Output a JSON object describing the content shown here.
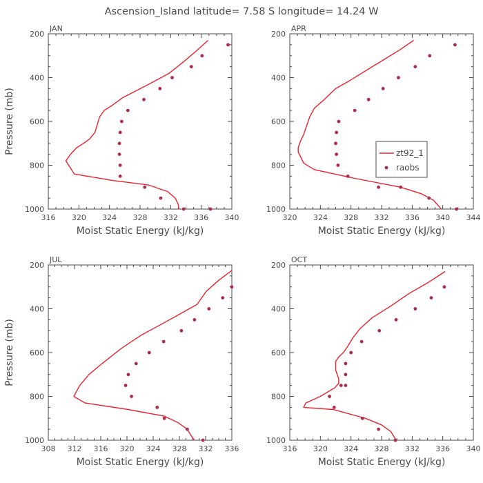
{
  "title": "Ascension_Island   latitude=  7.58 S longitude=  14.24 W",
  "colors": {
    "model": "#e8212d",
    "obs": "#b0284a",
    "axis": "#4a4a4a"
  },
  "legend": {
    "model": "zt92_1",
    "obs": "raobs"
  },
  "chart_data": [
    {
      "type": "line",
      "label": "JAN",
      "xlabel": "Moist Static Energy (kJ/kg)",
      "ylabel": "Pressure (mb)",
      "xlim": [
        316,
        340
      ],
      "xticks": [
        316,
        320,
        324,
        328,
        332,
        336,
        340
      ],
      "ylim": [
        1000,
        200
      ],
      "yticks": [
        200,
        400,
        600,
        800,
        1000
      ],
      "show_ylabel": true,
      "show_legend": false,
      "model": {
        "x": [
          336.9,
          335.3,
          333.6,
          331.8,
          330.2,
          328.6,
          325.8,
          324.2,
          323.3,
          322.7,
          322.1,
          321.4,
          320.6,
          319.7,
          318.9,
          318.3,
          319.4,
          324.5,
          329.1,
          331.6,
          332.6,
          333.0,
          333.1
        ],
        "y": [
          230,
          280,
          330,
          380,
          410,
          440,
          490,
          530,
          550,
          580,
          650,
          680,
          700,
          720,
          750,
          780,
          840,
          870,
          890,
          920,
          950,
          980,
          1000
        ]
      },
      "obs": {
        "x": [
          339.5,
          336.1,
          334.7,
          332.2,
          330.6,
          328.5,
          326.4,
          325.6,
          325.4,
          325.3,
          325.3,
          325.4,
          325.4,
          328.6,
          330.7,
          333.7,
          337.2
        ],
        "y": [
          250,
          300,
          350,
          400,
          450,
          500,
          550,
          600,
          650,
          700,
          750,
          800,
          850,
          900,
          950,
          1000,
          1000
        ]
      }
    },
    {
      "type": "line",
      "label": "APR",
      "xlabel": "Moist Static Energy (kJ/kg)",
      "ylabel": "",
      "xlim": [
        320,
        344
      ],
      "xticks": [
        320,
        324,
        328,
        332,
        336,
        340,
        344
      ],
      "ylim": [
        1000,
        200
      ],
      "yticks": [
        200,
        400,
        600,
        800,
        1000
      ],
      "show_ylabel": false,
      "show_legend": true,
      "model": {
        "x": [
          336.2,
          334.3,
          332.2,
          330.1,
          328.0,
          326.0,
          324.5,
          323.2,
          322.6,
          322.2,
          321.8,
          321.4,
          321.1,
          321.1,
          321.4,
          321.8,
          323.2,
          328.5,
          334.5,
          337.2,
          338.8,
          339.8
        ],
        "y": [
          230,
          275,
          320,
          365,
          410,
          450,
          500,
          540,
          580,
          620,
          660,
          690,
          720,
          740,
          760,
          790,
          820,
          860,
          900,
          930,
          960,
          1000
        ]
      },
      "obs": {
        "x": [
          341.6,
          338.3,
          336.4,
          334.2,
          332.2,
          330.3,
          328.5,
          326.4,
          326.1,
          326.0,
          326.1,
          326.3,
          327.6,
          331.6,
          334.5,
          338.2,
          341.8
        ],
        "y": [
          250,
          300,
          350,
          400,
          450,
          500,
          550,
          600,
          650,
          700,
          750,
          800,
          850,
          900,
          900,
          950,
          1000
        ]
      }
    },
    {
      "type": "line",
      "label": "JUL",
      "xlabel": "Moist Static Energy (kJ/kg)",
      "ylabel": "Pressure (mb)",
      "xlim": [
        308,
        336
      ],
      "xticks": [
        308,
        312,
        316,
        320,
        324,
        328,
        332,
        336
      ],
      "ylim": [
        1000,
        200
      ],
      "yticks": [
        200,
        400,
        600,
        800,
        1000
      ],
      "show_ylabel": true,
      "show_legend": false,
      "model": {
        "x": [
          336.0,
          334.0,
          332.1,
          330.7,
          328.3,
          325.3,
          322.2,
          319.2,
          316.2,
          314.2,
          312.8,
          311.9,
          313.6,
          320.2,
          325.7,
          327.8,
          329.2,
          329.8,
          330.3
        ],
        "y": [
          225,
          270,
          320,
          380,
          420,
          470,
          520,
          580,
          650,
          700,
          750,
          800,
          830,
          860,
          890,
          920,
          950,
          980,
          1000
        ]
      },
      "obs": {
        "x": [
          336.0,
          334.6,
          332.5,
          330.3,
          328.3,
          325.6,
          323.4,
          321.4,
          320.2,
          319.8,
          320.7,
          324.6,
          325.7,
          329.2,
          331.6
        ],
        "y": [
          300,
          350,
          400,
          450,
          500,
          550,
          600,
          650,
          700,
          750,
          800,
          850,
          900,
          950,
          1000
        ]
      }
    },
    {
      "type": "line",
      "label": "OCT",
      "xlabel": "Moist Static Energy (kJ/kg)",
      "ylabel": "",
      "xlim": [
        316,
        340
      ],
      "xticks": [
        316,
        320,
        324,
        328,
        332,
        336,
        340
      ],
      "ylim": [
        1000,
        200
      ],
      "yticks": [
        200,
        400,
        600,
        800,
        1000
      ],
      "show_ylabel": false,
      "show_legend": false,
      "model": {
        "x": [
          336.3,
          334.1,
          331.6,
          329.1,
          326.8,
          325.2,
          324.3,
          323.6,
          323.0,
          322.4,
          322.0,
          322.0,
          322.4,
          322.4,
          321.9,
          320.0,
          318.1,
          317.8,
          321.7,
          325.9,
          328.0,
          329.2,
          329.9
        ],
        "y": [
          230,
          280,
          330,
          390,
          440,
          490,
          530,
          570,
          600,
          620,
          640,
          680,
          720,
          740,
          760,
          800,
          830,
          850,
          860,
          900,
          930,
          960,
          1000
        ]
      },
      "obs": {
        "x": [
          336.2,
          334.5,
          332.4,
          329.9,
          327.7,
          325.4,
          324.0,
          323.3,
          323.3,
          323.3,
          322.7,
          321.2,
          321.8,
          325.5,
          327.6,
          329.8
        ],
        "y": [
          300,
          350,
          400,
          450,
          500,
          550,
          600,
          650,
          700,
          750,
          750,
          800,
          850,
          900,
          950,
          1000
        ]
      }
    }
  ]
}
